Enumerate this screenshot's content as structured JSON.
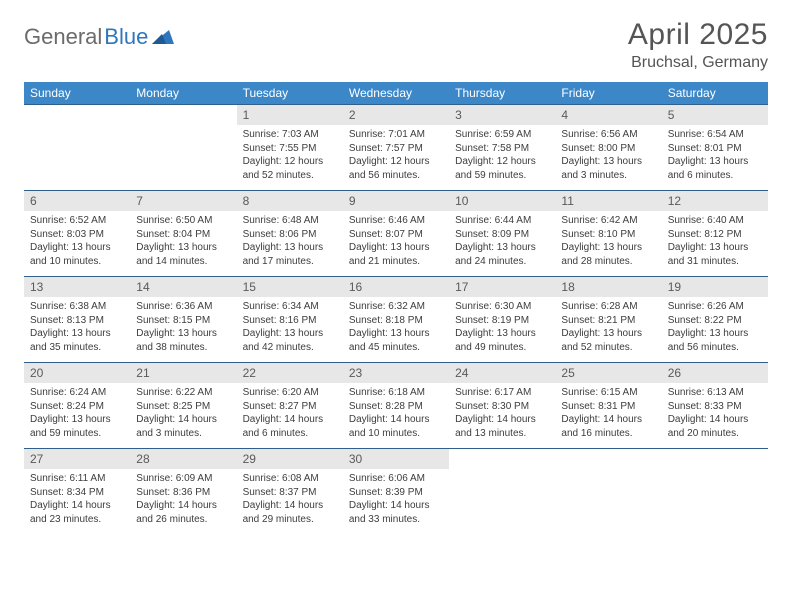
{
  "logo": {
    "part1": "General",
    "part2": "Blue"
  },
  "title": "April 2025",
  "location": "Bruchsal, Germany",
  "colors": {
    "header_bg": "#3b87c8",
    "header_text": "#ffffff",
    "daynum_bg": "#e7e7e7",
    "daynum_text": "#5a5a5a",
    "body_text": "#3d3d3d",
    "row_border": "#2f5f8a",
    "logo_gray": "#6b6b6b",
    "logo_blue": "#2f77bd",
    "title_color": "#555555"
  },
  "weekdays": [
    "Sunday",
    "Monday",
    "Tuesday",
    "Wednesday",
    "Thursday",
    "Friday",
    "Saturday"
  ],
  "grid": [
    [
      null,
      null,
      {
        "n": "1",
        "sr": "Sunrise: 7:03 AM",
        "ss": "Sunset: 7:55 PM",
        "d1": "Daylight: 12 hours",
        "d2": "and 52 minutes."
      },
      {
        "n": "2",
        "sr": "Sunrise: 7:01 AM",
        "ss": "Sunset: 7:57 PM",
        "d1": "Daylight: 12 hours",
        "d2": "and 56 minutes."
      },
      {
        "n": "3",
        "sr": "Sunrise: 6:59 AM",
        "ss": "Sunset: 7:58 PM",
        "d1": "Daylight: 12 hours",
        "d2": "and 59 minutes."
      },
      {
        "n": "4",
        "sr": "Sunrise: 6:56 AM",
        "ss": "Sunset: 8:00 PM",
        "d1": "Daylight: 13 hours",
        "d2": "and 3 minutes."
      },
      {
        "n": "5",
        "sr": "Sunrise: 6:54 AM",
        "ss": "Sunset: 8:01 PM",
        "d1": "Daylight: 13 hours",
        "d2": "and 6 minutes."
      }
    ],
    [
      {
        "n": "6",
        "sr": "Sunrise: 6:52 AM",
        "ss": "Sunset: 8:03 PM",
        "d1": "Daylight: 13 hours",
        "d2": "and 10 minutes."
      },
      {
        "n": "7",
        "sr": "Sunrise: 6:50 AM",
        "ss": "Sunset: 8:04 PM",
        "d1": "Daylight: 13 hours",
        "d2": "and 14 minutes."
      },
      {
        "n": "8",
        "sr": "Sunrise: 6:48 AM",
        "ss": "Sunset: 8:06 PM",
        "d1": "Daylight: 13 hours",
        "d2": "and 17 minutes."
      },
      {
        "n": "9",
        "sr": "Sunrise: 6:46 AM",
        "ss": "Sunset: 8:07 PM",
        "d1": "Daylight: 13 hours",
        "d2": "and 21 minutes."
      },
      {
        "n": "10",
        "sr": "Sunrise: 6:44 AM",
        "ss": "Sunset: 8:09 PM",
        "d1": "Daylight: 13 hours",
        "d2": "and 24 minutes."
      },
      {
        "n": "11",
        "sr": "Sunrise: 6:42 AM",
        "ss": "Sunset: 8:10 PM",
        "d1": "Daylight: 13 hours",
        "d2": "and 28 minutes."
      },
      {
        "n": "12",
        "sr": "Sunrise: 6:40 AM",
        "ss": "Sunset: 8:12 PM",
        "d1": "Daylight: 13 hours",
        "d2": "and 31 minutes."
      }
    ],
    [
      {
        "n": "13",
        "sr": "Sunrise: 6:38 AM",
        "ss": "Sunset: 8:13 PM",
        "d1": "Daylight: 13 hours",
        "d2": "and 35 minutes."
      },
      {
        "n": "14",
        "sr": "Sunrise: 6:36 AM",
        "ss": "Sunset: 8:15 PM",
        "d1": "Daylight: 13 hours",
        "d2": "and 38 minutes."
      },
      {
        "n": "15",
        "sr": "Sunrise: 6:34 AM",
        "ss": "Sunset: 8:16 PM",
        "d1": "Daylight: 13 hours",
        "d2": "and 42 minutes."
      },
      {
        "n": "16",
        "sr": "Sunrise: 6:32 AM",
        "ss": "Sunset: 8:18 PM",
        "d1": "Daylight: 13 hours",
        "d2": "and 45 minutes."
      },
      {
        "n": "17",
        "sr": "Sunrise: 6:30 AM",
        "ss": "Sunset: 8:19 PM",
        "d1": "Daylight: 13 hours",
        "d2": "and 49 minutes."
      },
      {
        "n": "18",
        "sr": "Sunrise: 6:28 AM",
        "ss": "Sunset: 8:21 PM",
        "d1": "Daylight: 13 hours",
        "d2": "and 52 minutes."
      },
      {
        "n": "19",
        "sr": "Sunrise: 6:26 AM",
        "ss": "Sunset: 8:22 PM",
        "d1": "Daylight: 13 hours",
        "d2": "and 56 minutes."
      }
    ],
    [
      {
        "n": "20",
        "sr": "Sunrise: 6:24 AM",
        "ss": "Sunset: 8:24 PM",
        "d1": "Daylight: 13 hours",
        "d2": "and 59 minutes."
      },
      {
        "n": "21",
        "sr": "Sunrise: 6:22 AM",
        "ss": "Sunset: 8:25 PM",
        "d1": "Daylight: 14 hours",
        "d2": "and 3 minutes."
      },
      {
        "n": "22",
        "sr": "Sunrise: 6:20 AM",
        "ss": "Sunset: 8:27 PM",
        "d1": "Daylight: 14 hours",
        "d2": "and 6 minutes."
      },
      {
        "n": "23",
        "sr": "Sunrise: 6:18 AM",
        "ss": "Sunset: 8:28 PM",
        "d1": "Daylight: 14 hours",
        "d2": "and 10 minutes."
      },
      {
        "n": "24",
        "sr": "Sunrise: 6:17 AM",
        "ss": "Sunset: 8:30 PM",
        "d1": "Daylight: 14 hours",
        "d2": "and 13 minutes."
      },
      {
        "n": "25",
        "sr": "Sunrise: 6:15 AM",
        "ss": "Sunset: 8:31 PM",
        "d1": "Daylight: 14 hours",
        "d2": "and 16 minutes."
      },
      {
        "n": "26",
        "sr": "Sunrise: 6:13 AM",
        "ss": "Sunset: 8:33 PM",
        "d1": "Daylight: 14 hours",
        "d2": "and 20 minutes."
      }
    ],
    [
      {
        "n": "27",
        "sr": "Sunrise: 6:11 AM",
        "ss": "Sunset: 8:34 PM",
        "d1": "Daylight: 14 hours",
        "d2": "and 23 minutes."
      },
      {
        "n": "28",
        "sr": "Sunrise: 6:09 AM",
        "ss": "Sunset: 8:36 PM",
        "d1": "Daylight: 14 hours",
        "d2": "and 26 minutes."
      },
      {
        "n": "29",
        "sr": "Sunrise: 6:08 AM",
        "ss": "Sunset: 8:37 PM",
        "d1": "Daylight: 14 hours",
        "d2": "and 29 minutes."
      },
      {
        "n": "30",
        "sr": "Sunrise: 6:06 AM",
        "ss": "Sunset: 8:39 PM",
        "d1": "Daylight: 14 hours",
        "d2": "and 33 minutes."
      },
      null,
      null,
      null
    ]
  ]
}
